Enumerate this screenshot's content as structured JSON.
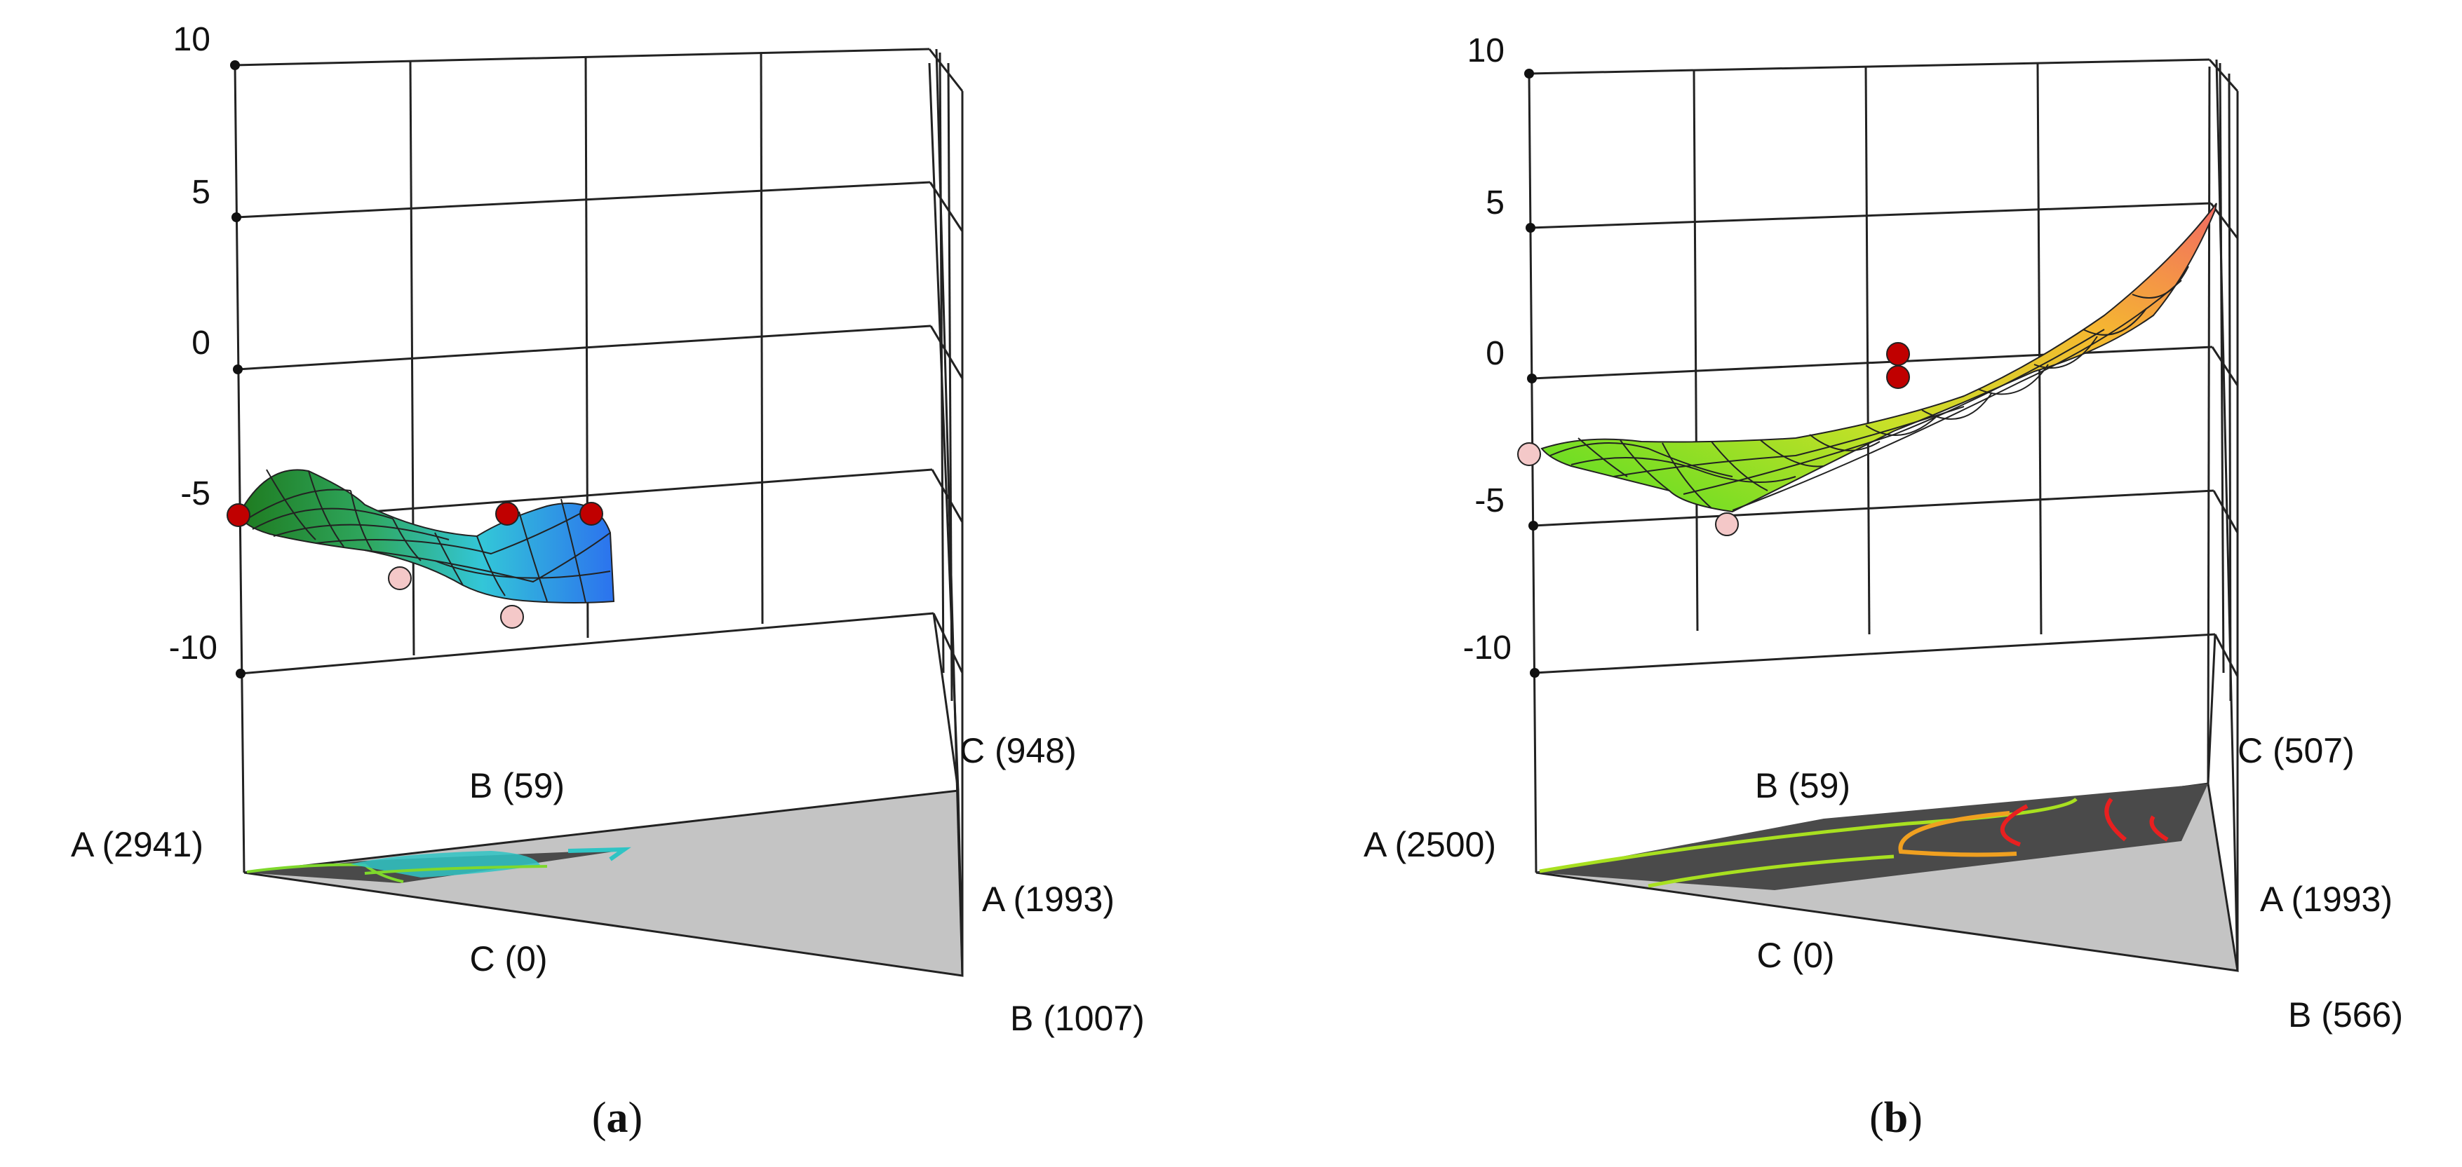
{
  "chart_data": [
    {
      "type": "surface",
      "panel_label": "a",
      "vertical_axis": {
        "ticks": [
          "10",
          "5",
          "0",
          "-5",
          "-10"
        ],
        "range": [
          -10,
          10
        ]
      },
      "vertex_labels": {
        "front_left": "A (2941)",
        "front_top": "B (59)",
        "front_bottom": "C (0)",
        "right_top": "C (948)",
        "right_middle": "A (1993)",
        "right_bottom": "B (1007)"
      },
      "surface_colors": [
        "#1e7a1e",
        "#2fa860",
        "#33c6d8",
        "#2c72ee"
      ],
      "design_points": [
        {
          "z": -5.0,
          "above_surface": true
        },
        {
          "z": -6.6,
          "above_surface": false
        },
        {
          "z": -5.0,
          "above_surface": true
        },
        {
          "z": -5.0,
          "above_surface": true
        },
        {
          "z": -7.6,
          "above_surface": false
        }
      ],
      "contour_colors": [
        "#7fd82c",
        "#2fc4c4"
      ]
    },
    {
      "type": "surface",
      "panel_label": "b",
      "vertical_axis": {
        "ticks": [
          "10",
          "5",
          "0",
          "-5",
          "-10"
        ],
        "range": [
          -10,
          10
        ]
      },
      "vertex_labels": {
        "front_left": "A (2500)",
        "front_top": "B (59)",
        "front_bottom": "C (0)",
        "right_top": "C (507)",
        "right_middle": "A (1993)",
        "right_bottom": "B (566)"
      },
      "surface_colors": [
        "#55dd22",
        "#c8e028",
        "#f5b830",
        "#f26a62"
      ],
      "design_points": [
        {
          "z": -3.3,
          "above_surface": false
        },
        {
          "z": -5.6,
          "above_surface": false
        },
        {
          "z": 0.0,
          "above_surface": true
        },
        {
          "z": 0.8,
          "above_surface": true
        }
      ],
      "contour_colors": [
        "#a8e020",
        "#f0a020",
        "#e82020"
      ]
    }
  ]
}
